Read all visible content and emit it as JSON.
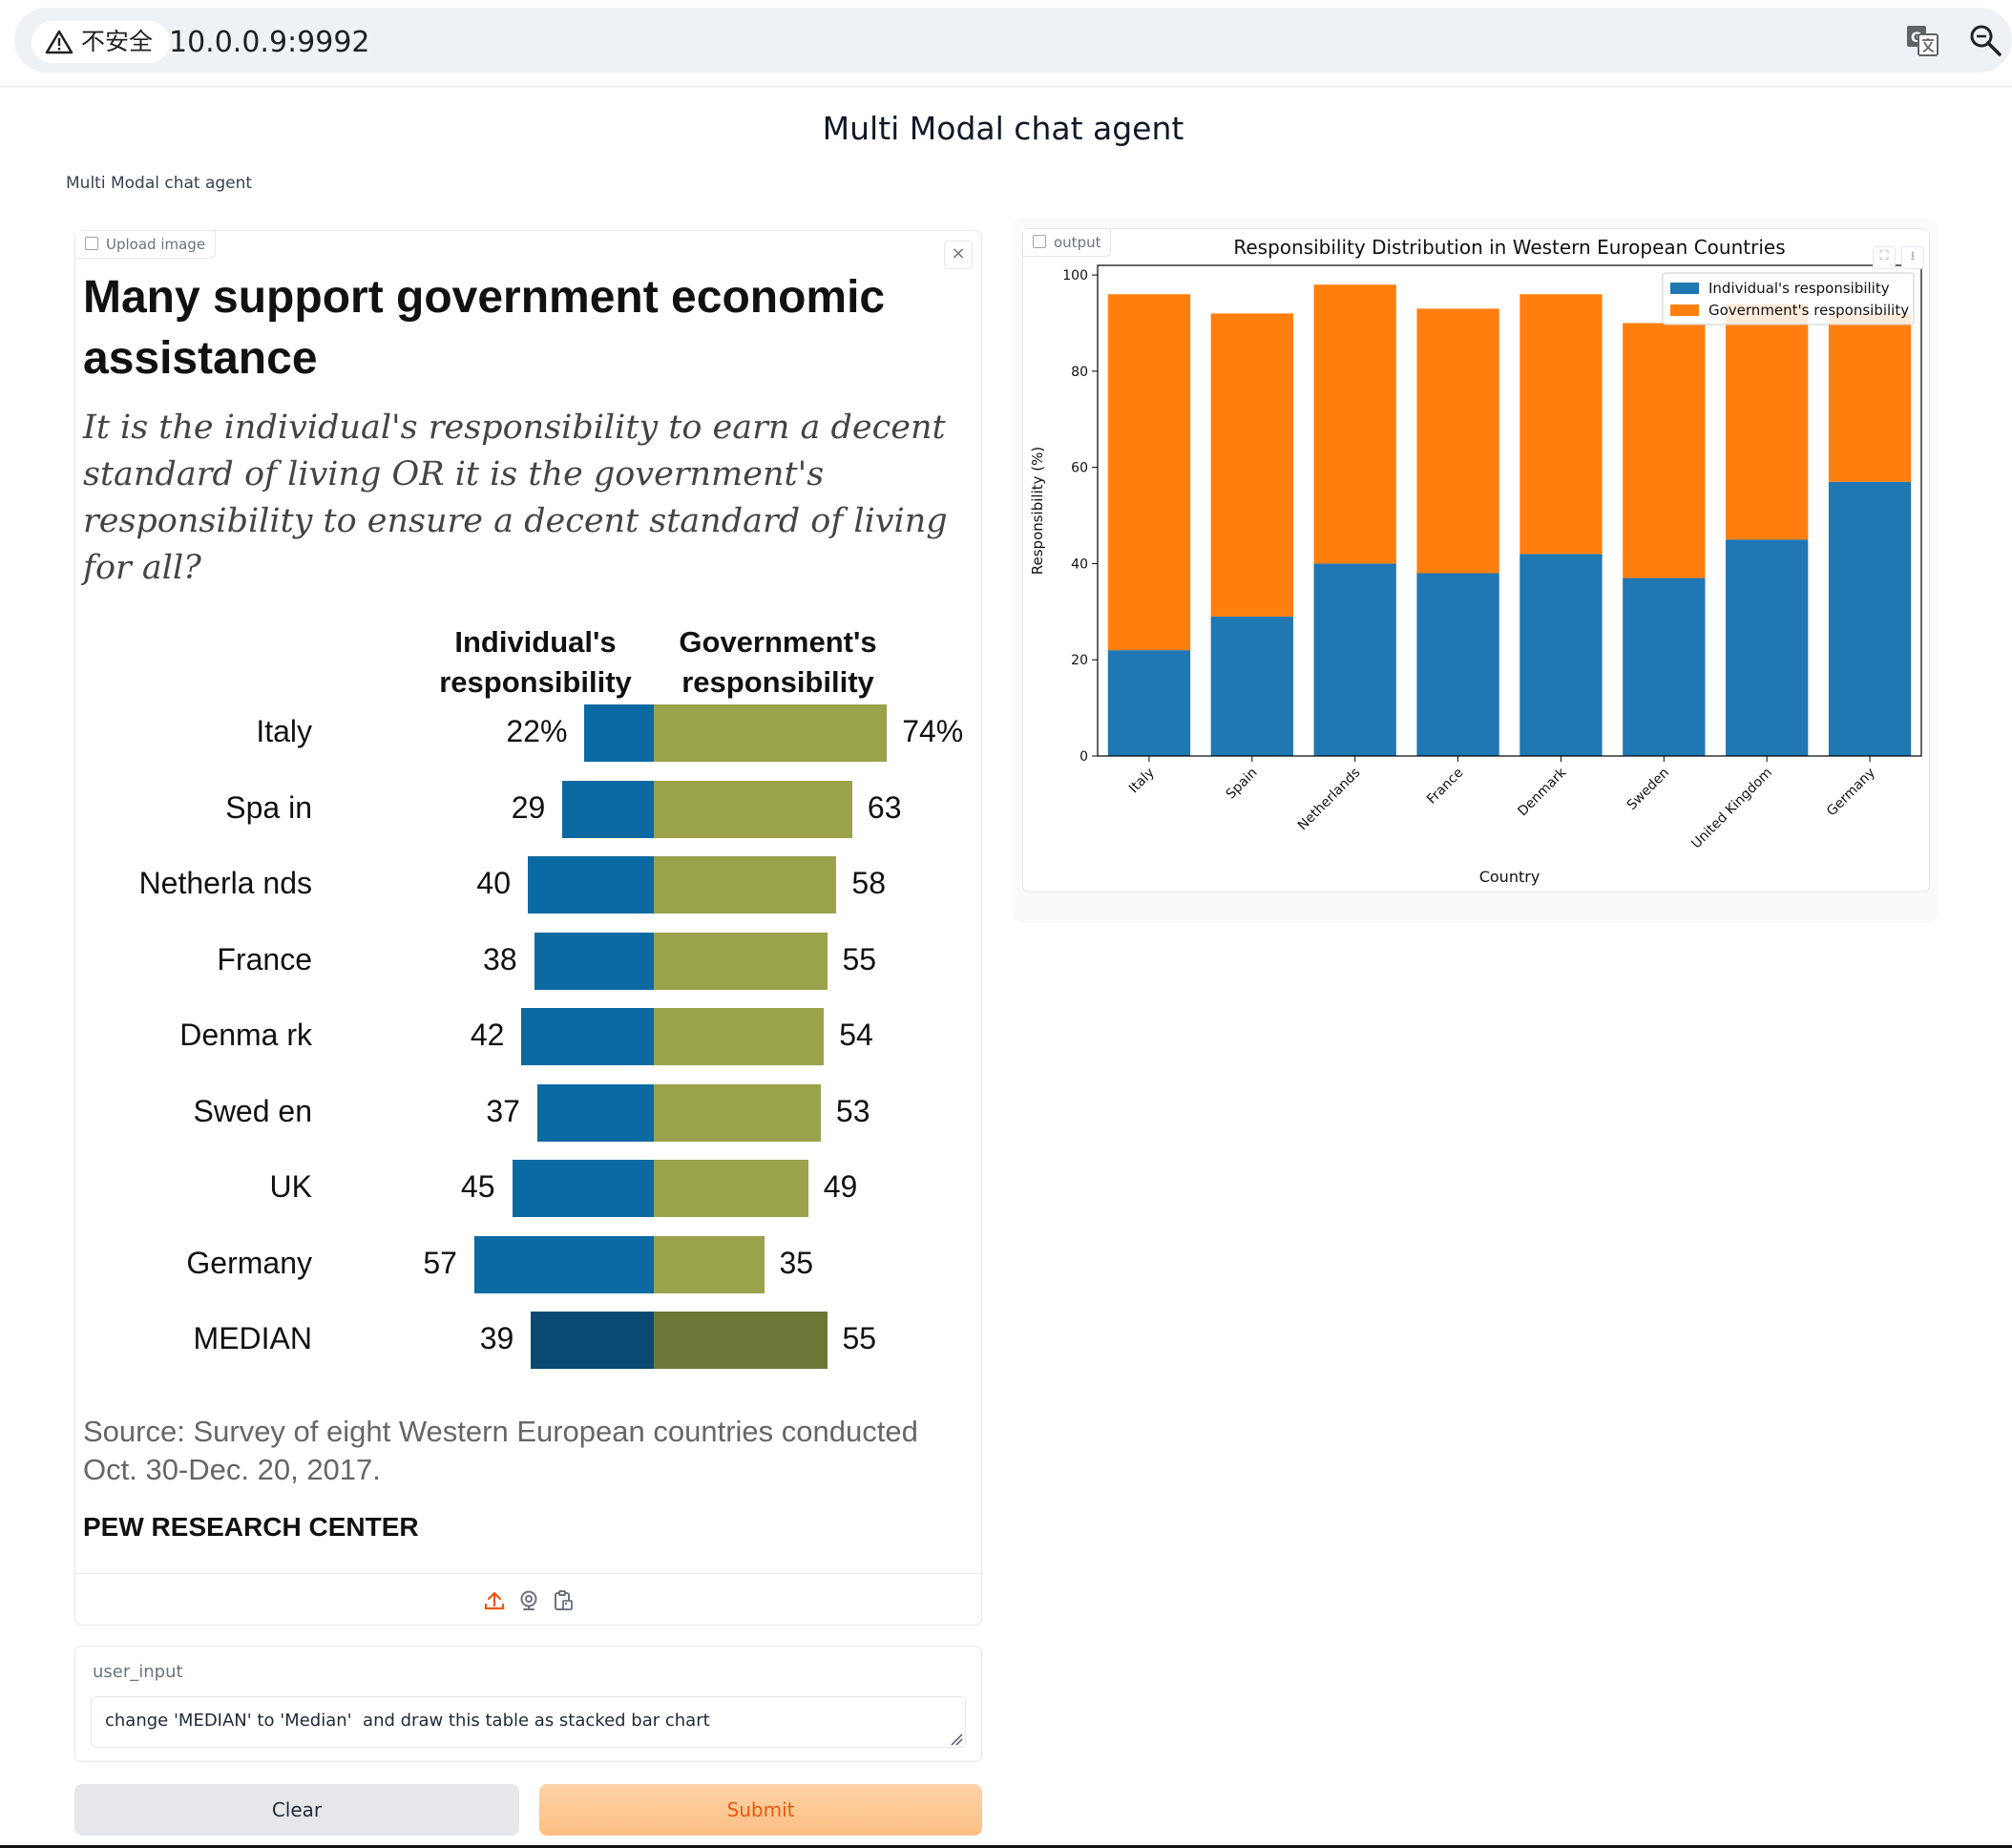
{
  "browser": {
    "security_label": "不安全",
    "url": "10.0.0.9:9992"
  },
  "page": {
    "title": "Multi Modal chat agent",
    "description": "Multi Modal chat agent"
  },
  "upload": {
    "label": "Upload image",
    "close_symbol": "×",
    "toolbar_icons": [
      "upload-icon",
      "webcam-icon",
      "clipboard-icon"
    ]
  },
  "pew_image": {
    "title": "Many support government economic assistance",
    "question": "It is the individual's responsibility to earn a decent standard of living OR it is the government's responsibility to ensure a decent standard of living for all?",
    "col_individual": "Individual's responsibility",
    "col_government": "Government's responsibility",
    "rows": [
      {
        "country": "Italy",
        "individual": 22,
        "government": 74,
        "individual_label": "22%",
        "government_label": "74%"
      },
      {
        "country": "Spa in",
        "individual": 29,
        "government": 63,
        "individual_label": "29",
        "government_label": "63"
      },
      {
        "country": "Netherla nds",
        "individual": 40,
        "government": 58,
        "individual_label": "40",
        "government_label": "58"
      },
      {
        "country": "France",
        "individual": 38,
        "government": 55,
        "individual_label": "38",
        "government_label": "55"
      },
      {
        "country": "Denma rk",
        "individual": 42,
        "government": 54,
        "individual_label": "42",
        "government_label": "54"
      },
      {
        "country": "Swed en",
        "individual": 37,
        "government": 53,
        "individual_label": "37",
        "government_label": "53"
      },
      {
        "country": "UK",
        "individual": 45,
        "government": 49,
        "individual_label": "45",
        "government_label": "49"
      },
      {
        "country": "Germany",
        "individual": 57,
        "government": 35,
        "individual_label": "57",
        "government_label": "35"
      },
      {
        "country": "MEDIAN",
        "individual": 39,
        "government": 55,
        "individual_label": "39",
        "government_label": "55",
        "median": true
      }
    ],
    "source": "Source: Survey of eight Western European countries conducted Oct. 30-Dec. 20, 2017.",
    "org": "PEW RESEARCH CENTER",
    "colors": {
      "individual": "#0b6aa2",
      "government": "#9aa24c",
      "median_individual": "#0a4a72",
      "median_government": "#6d7636"
    }
  },
  "input": {
    "label": "user_input",
    "value": "change 'MEDIAN' to 'Median'  and draw this table as stacked bar chart"
  },
  "buttons": {
    "clear": "Clear",
    "submit": "Submit"
  },
  "output": {
    "label": "output"
  },
  "chart_data": {
    "type": "bar",
    "stacked": true,
    "title": "Responsibility Distribution in Western European Countries",
    "xlabel": "Country",
    "ylabel": "Responsibility (%)",
    "ylim": [
      0,
      102
    ],
    "yticks": [
      0,
      20,
      40,
      60,
      80,
      100
    ],
    "categories": [
      "Italy",
      "Spain",
      "Netherlands",
      "France",
      "Denmark",
      "Sweden",
      "United Kingdom",
      "Germany"
    ],
    "series": [
      {
        "name": "Individual's responsibility",
        "values": [
          22,
          29,
          40,
          38,
          42,
          37,
          45,
          57
        ],
        "color": "#1f77b4"
      },
      {
        "name": "Government's responsibility",
        "values": [
          74,
          63,
          58,
          55,
          54,
          53,
          49,
          35
        ],
        "color": "#ff7f0e"
      }
    ],
    "legend": "top-right",
    "grid": false
  }
}
